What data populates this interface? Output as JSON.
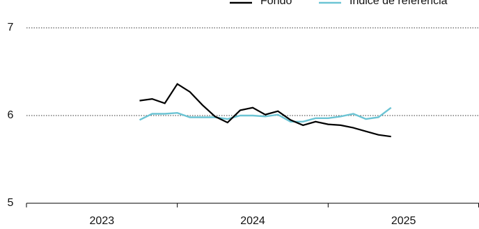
{
  "chart_data": {
    "type": "line",
    "x": [
      2023.75,
      2023.833,
      2023.917,
      2024,
      2024.083,
      2024.167,
      2024.25,
      2024.333,
      2024.417,
      2024.5,
      2024.583,
      2024.667,
      2024.75,
      2024.833,
      2024.917,
      2025,
      2025.083,
      2025.167,
      2025.25,
      2025.333,
      2025.417
    ],
    "series": [
      {
        "name": "Fondo",
        "color": "#000000",
        "values": [
          6.17,
          6.19,
          6.14,
          6.36,
          6.27,
          6.12,
          5.99,
          5.92,
          6.06,
          6.09,
          6.01,
          6.05,
          5.95,
          5.89,
          5.93,
          5.9,
          5.89,
          5.86,
          5.82,
          5.78,
          5.76
        ]
      },
      {
        "name": "Índice de referencia",
        "color": "#6cc4d4",
        "values": [
          5.95,
          6.02,
          6.02,
          6.03,
          5.98,
          5.98,
          5.98,
          5.96,
          6.0,
          6.0,
          5.99,
          6.01,
          5.93,
          5.93,
          5.97,
          5.97,
          5.99,
          6.02,
          5.96,
          5.98,
          6.09
        ]
      }
    ],
    "xlim": [
      2023,
      2026
    ],
    "xticks": [
      {
        "value": 2023.5,
        "label": "2023"
      },
      {
        "value": 2024.5,
        "label": "2024"
      },
      {
        "value": 2025.5,
        "label": "2025"
      }
    ],
    "ylim": [
      5,
      7
    ],
    "yticks": [
      5,
      6,
      7
    ],
    "grid": true
  }
}
